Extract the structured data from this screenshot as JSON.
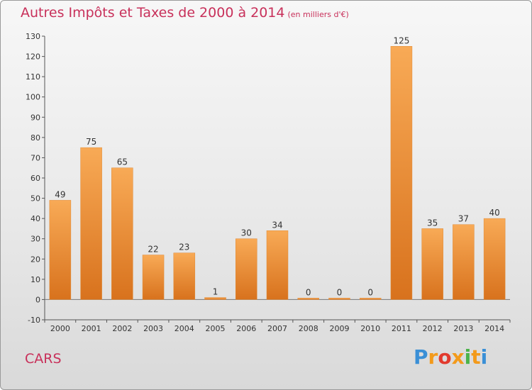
{
  "title": "Autres Impôts et Taxes de 2000 à 2014",
  "title_unit": "(en milliers d'€)",
  "commune": "CARS",
  "brand": {
    "letters": [
      "P",
      "r",
      "o",
      "x",
      "i",
      "t",
      "i"
    ],
    "colors": [
      "#3a8fd6",
      "#f39a1b",
      "#e23a2e",
      "#f39a1b",
      "#4bb34a",
      "#f39a1b",
      "#3a8fd6"
    ]
  },
  "colors": {
    "accent": "#c8305a",
    "bar_light": "#f8aa56",
    "bar_dark": "#d8721d",
    "text": "#333333"
  },
  "chart_data": {
    "type": "bar",
    "categories": [
      "2000",
      "2001",
      "2002",
      "2003",
      "2004",
      "2005",
      "2006",
      "2007",
      "2008",
      "2009",
      "2010",
      "2011",
      "2012",
      "2013",
      "2014"
    ],
    "values": [
      49,
      75,
      65,
      22,
      23,
      1,
      30,
      34,
      0,
      0,
      0,
      125,
      35,
      37,
      40
    ],
    "ylim": [
      -10,
      130
    ],
    "yticks": [
      -10,
      0,
      10,
      20,
      30,
      40,
      50,
      60,
      70,
      80,
      90,
      100,
      110,
      120,
      130
    ],
    "grid": false
  }
}
